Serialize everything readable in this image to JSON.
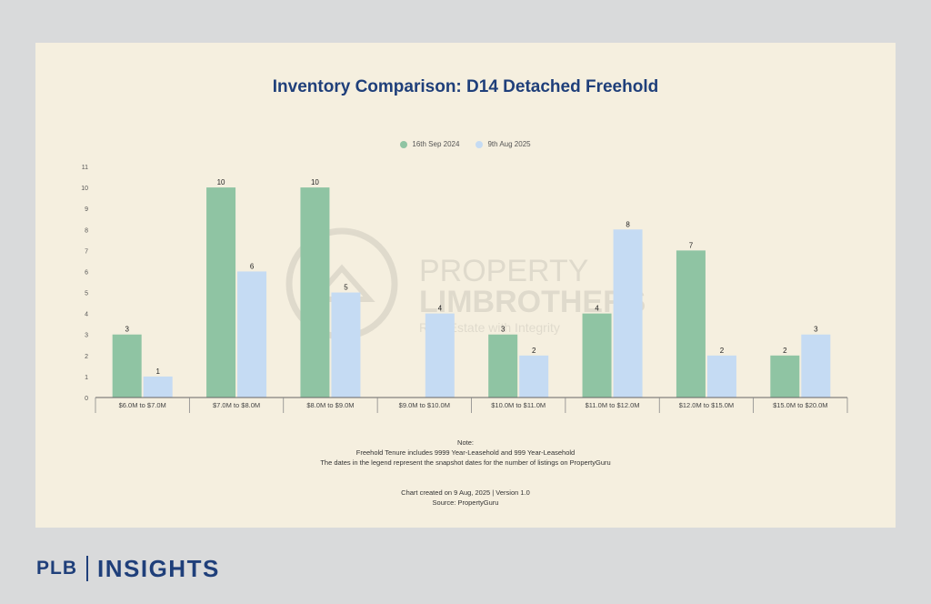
{
  "chart_data": {
    "type": "bar",
    "title": "Inventory Comparison: D14 Detached Freehold",
    "categories": [
      "$6.0M to $7.0M",
      "$7.0M to $8.0M",
      "$8.0M to $9.0M",
      "$9.0M to $10.0M",
      "$10.0M to $11.0M",
      "$11.0M to $12.0M",
      "$12.0M to $15.0M",
      "$15.0M to $20.0M"
    ],
    "series": [
      {
        "name": "16th Sep 2024",
        "values": [
          3,
          10,
          10,
          null,
          3,
          4,
          7,
          2
        ],
        "color": "#8fc4a3"
      },
      {
        "name": "9th Aug 2025",
        "values": [
          1,
          6,
          5,
          4,
          2,
          8,
          2,
          3
        ],
        "color": "#c5dbf3"
      }
    ],
    "yticks": [
      "0",
      "1",
      "2",
      "3",
      "4",
      "5",
      "6",
      "7",
      "8",
      "9",
      "10",
      "11"
    ],
    "ylim": [
      0,
      11
    ],
    "grid": false,
    "legend": "top-center",
    "xlabel": "",
    "ylabel": ""
  },
  "watermark": {
    "line1": "PROPERTY",
    "line2": "LIMBROTHERS",
    "line3": "Real Estate with Integrity"
  },
  "notes": {
    "heading": "Note:",
    "line1": "Freehold Tenure includes 9999 Year-Leasehold and 999 Year-Leasehold",
    "line2": "The dates in the legend represent the snapshot dates for the number of listings on PropertyGuru"
  },
  "meta": {
    "created": "Chart created on 9 Aug, 2025 | Version 1.0",
    "source": "Source: PropertyGuru"
  },
  "brand": {
    "left": "PLB",
    "right": "INSIGHTS"
  }
}
